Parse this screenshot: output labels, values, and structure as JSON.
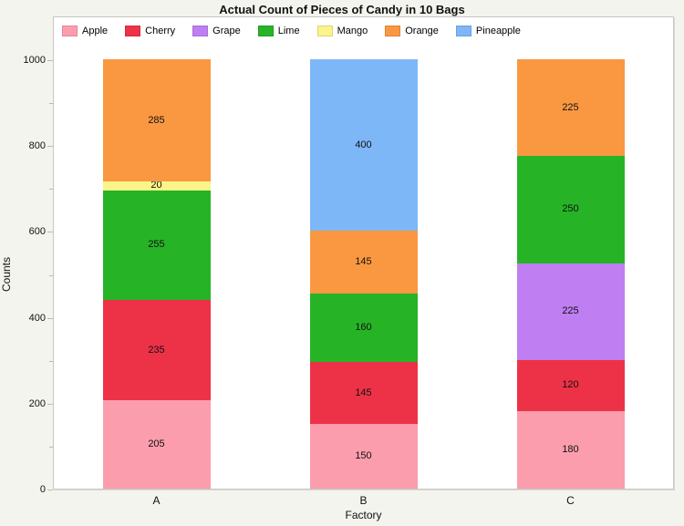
{
  "chart_data": {
    "type": "bar",
    "variant": "stacked-vertical",
    "title": "Actual Count of Pieces of Candy in 10 Bags",
    "xlabel": "Factory",
    "ylabel": "Counts",
    "categories": [
      "A",
      "B",
      "C"
    ],
    "ylim": [
      0,
      1000
    ],
    "yticks": [
      0,
      200,
      400,
      600,
      800,
      1000
    ],
    "minor_tick_interval": 100,
    "legend_position": "top-inside-frame",
    "grid": false,
    "series": [
      {
        "name": "Apple",
        "color": "#FC9DAD",
        "values": [
          205,
          150,
          180
        ]
      },
      {
        "name": "Cherry",
        "color": "#ED3248",
        "values": [
          235,
          145,
          120
        ]
      },
      {
        "name": "Grape",
        "color": "#BF7EF2",
        "values": [
          0,
          0,
          225
        ]
      },
      {
        "name": "Lime",
        "color": "#26B426",
        "values": [
          255,
          160,
          250
        ]
      },
      {
        "name": "Mango",
        "color": "#FAF489",
        "values": [
          20,
          0,
          0
        ]
      },
      {
        "name": "Orange",
        "color": "#FA9842",
        "values": [
          285,
          145,
          225
        ]
      },
      {
        "name": "Pineapple",
        "color": "#7DB7F8",
        "values": [
          0,
          400,
          0
        ]
      }
    ],
    "totals": [
      1000,
      1000,
      1000
    ]
  },
  "colors": {
    "page_background": "#F4F4EE",
    "plot_background": "#FFFFFF",
    "frame_border": "#C6C6C3",
    "tick": "#B9B9B6",
    "text": "#111111"
  }
}
